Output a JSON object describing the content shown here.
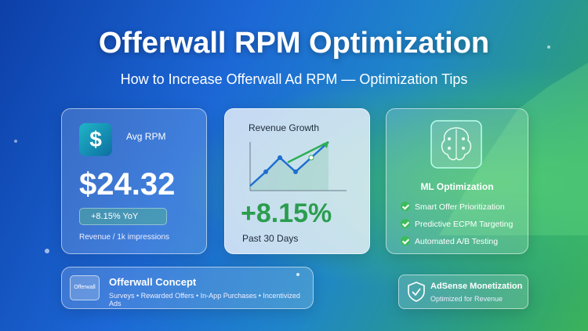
{
  "header": {
    "title": "Offerwall RPM Optimization",
    "subtitle": "How to Increase Offerwall Ad RPM — Optimization Tips"
  },
  "rpm_card": {
    "icon": "$",
    "label": "Avg RPM",
    "value": "$24.32",
    "badge": "+8.15% YoY",
    "caption": "Revenue / 1k impressions"
  },
  "growth_card": {
    "title": "Revenue Growth",
    "value": "+8.15%",
    "caption": "Past 30 Days"
  },
  "ml_card": {
    "title": "ML Optimization",
    "items": [
      "Smart Offer Prioritization",
      "Predictive ECPM Targeting",
      "Automated A/B Testing"
    ]
  },
  "concept_card": {
    "icon_label": "Offerwall",
    "title": "Offerwall Concept",
    "text": "Surveys • Rewarded Offers • In-App Purchases • Incentivized Ads"
  },
  "adsense_card": {
    "title": "AdSense Monetization",
    "text": "Optimized for Revenue"
  }
}
